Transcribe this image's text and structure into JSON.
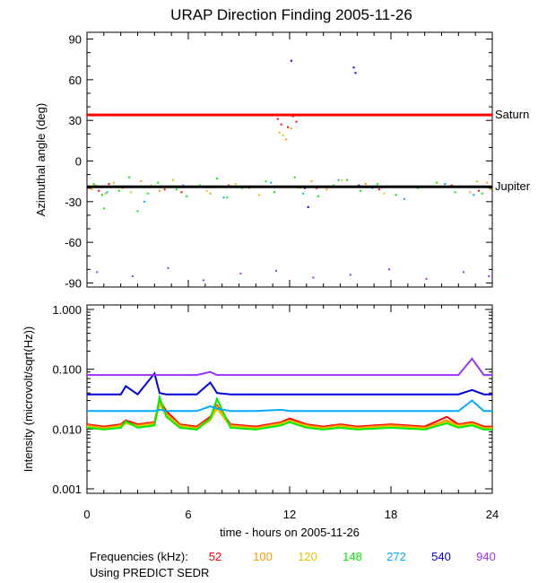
{
  "chart_data": [
    {
      "type": "scatter",
      "title": "URAP Direction Finding  2005-11-26",
      "ylabel": "Azimuthal angle (deg)",
      "xlim": [
        0,
        24
      ],
      "ylim": [
        -93,
        95
      ],
      "yticks": [
        90,
        60,
        30,
        0,
        -30,
        -60,
        -90
      ],
      "yticklabels": [
        "90",
        "60",
        "30",
        "0",
        "-30",
        "-60",
        "-90"
      ],
      "reference_lines": [
        {
          "name": "Saturn",
          "y": 34,
          "color": "#ff0000"
        },
        {
          "name": "Jupiter",
          "y": -19,
          "color": "#000000"
        }
      ],
      "series": [
        {
          "name": "52",
          "color": "#ff0000",
          "x": [
            0.2,
            0.7,
            1.3,
            2.3,
            4.6,
            5.6,
            8.4,
            11.3,
            11.5,
            11.7,
            11.9,
            12.2,
            12.4,
            13.6,
            17.3,
            21.6,
            23.2
          ],
          "y": [
            -20,
            -22,
            -17,
            -19,
            -21,
            -23,
            -18,
            31,
            27,
            34,
            25,
            33,
            29,
            -20,
            -21,
            -18,
            -22
          ]
        },
        {
          "name": "100",
          "color": "#ff9900",
          "x": [
            0.5,
            1.1,
            2.1,
            3.2,
            4.3,
            6.1,
            7.3,
            9.6,
            11.4,
            11.8,
            12.1,
            13.3,
            14.2,
            16.5,
            19.1,
            22.7,
            23.7
          ],
          "y": [
            -18,
            -24,
            -20,
            -15,
            -22,
            -19,
            -24,
            -20,
            21,
            16,
            24,
            -15,
            -21,
            -17,
            -19,
            -23,
            -16
          ]
        },
        {
          "name": "120",
          "color": "#e6c200",
          "x": [
            0.3,
            1.6,
            2.6,
            3.8,
            5.1,
            7.1,
            8.8,
            10.2,
            11.6,
            12.6,
            15.1,
            17.6,
            20.2,
            23.1,
            23.9
          ],
          "y": [
            -21,
            -16,
            -23,
            -18,
            -14,
            -22,
            -17,
            -25,
            19,
            -20,
            -14,
            -24,
            -19,
            -15,
            -21
          ]
        },
        {
          "name": "148",
          "color": "#00ee00",
          "x": [
            0.4,
            0.9,
            1.4,
            1.9,
            2.5,
            3.6,
            4.2,
            5.3,
            5.9,
            6.7,
            7.7,
            8.3,
            9.2,
            10.6,
            11.1,
            12.3,
            13.7,
            14.6,
            15.4,
            16.2,
            17.2,
            18.3,
            19.6,
            20.7,
            21.8,
            22.4,
            23.4,
            1.0,
            3.0
          ],
          "y": [
            -17,
            -25,
            -19,
            -22,
            -12,
            -24,
            -16,
            -21,
            -26,
            -18,
            -13,
            -27,
            -20,
            -15,
            -23,
            -12,
            -26,
            -18,
            -14,
            -22,
            -17,
            -25,
            -20,
            -16,
            -23,
            -19,
            -24,
            -35,
            -37
          ]
        },
        {
          "name": "272",
          "color": "#00aaff",
          "x": [
            1.2,
            3.4,
            5.7,
            8.1,
            10.9,
            12.8,
            14.9,
            16.9,
            18.8,
            21.2,
            22.9
          ],
          "y": [
            -23,
            -30,
            -18,
            -27,
            -16,
            -24,
            -14,
            -20,
            -28,
            -17,
            -25
          ]
        },
        {
          "name": "540",
          "color": "#0000dd",
          "x": [
            12.1,
            12.9,
            15.8,
            15.9,
            16.1,
            13.1
          ],
          "y": [
            74,
            -20,
            69,
            65,
            -18,
            -34
          ]
        },
        {
          "name": "940",
          "color": "#9933ff",
          "x": [
            0.6,
            2.7,
            4.8,
            6.9,
            9.1,
            11.2,
            13.4,
            15.6,
            17.9,
            20.1,
            22.3,
            23.8
          ],
          "y": [
            -82,
            -85,
            -79,
            -88,
            -83,
            -81,
            -86,
            -84,
            -80,
            -87,
            -82,
            -85
          ]
        }
      ]
    },
    {
      "type": "line",
      "ylabel": "Intensity (microvolt/sqrt(Hz))",
      "xlabel": "time - hours on 2005-11-26",
      "xlim": [
        0,
        24
      ],
      "xticks": [
        0,
        6,
        12,
        18,
        24
      ],
      "xticklabels": [
        "0",
        "6",
        "12",
        "18",
        "24"
      ],
      "ylim": [
        0.001,
        1.0
      ],
      "yscale": "log",
      "yticks": [
        1.0,
        0.1,
        0.01,
        0.001
      ],
      "yticklabels": [
        "1.000",
        "0.100",
        "0.010",
        "0.001"
      ],
      "x": [
        0,
        1,
        2,
        2.3,
        3,
        4,
        4.3,
        4.7,
        5.5,
        6.5,
        7.3,
        7.7,
        8.5,
        10,
        11.5,
        12,
        13,
        14,
        15,
        16,
        18,
        20,
        21.3,
        22,
        22.8,
        23.5,
        24
      ],
      "series": [
        {
          "name": "52",
          "color": "#ff0000",
          "values": [
            0.012,
            0.011,
            0.012,
            0.014,
            0.012,
            0.013,
            0.03,
            0.02,
            0.012,
            0.011,
            0.016,
            0.025,
            0.012,
            0.011,
            0.013,
            0.015,
            0.012,
            0.011,
            0.012,
            0.011,
            0.012,
            0.011,
            0.016,
            0.012,
            0.013,
            0.011,
            0.011
          ]
        },
        {
          "name": "100",
          "color": "#ff9900",
          "values": [
            0.0115,
            0.0105,
            0.0115,
            0.013,
            0.0115,
            0.0125,
            0.028,
            0.018,
            0.0115,
            0.0105,
            0.015,
            0.024,
            0.0115,
            0.0105,
            0.0125,
            0.014,
            0.0115,
            0.0105,
            0.0115,
            0.0105,
            0.0115,
            0.0105,
            0.014,
            0.0115,
            0.0125,
            0.0105,
            0.0105
          ]
        },
        {
          "name": "120",
          "color": "#e6c200",
          "values": [
            0.011,
            0.01,
            0.011,
            0.0125,
            0.011,
            0.012,
            0.026,
            0.017,
            0.011,
            0.01,
            0.014,
            0.022,
            0.011,
            0.01,
            0.012,
            0.0135,
            0.011,
            0.01,
            0.011,
            0.01,
            0.011,
            0.01,
            0.013,
            0.011,
            0.012,
            0.01,
            0.01
          ]
        },
        {
          "name": "148",
          "color": "#00ee00",
          "values": [
            0.0105,
            0.0098,
            0.0105,
            0.0135,
            0.0105,
            0.0115,
            0.034,
            0.016,
            0.0105,
            0.0098,
            0.015,
            0.032,
            0.0105,
            0.0098,
            0.0115,
            0.013,
            0.0105,
            0.0098,
            0.0105,
            0.0098,
            0.0105,
            0.0098,
            0.0125,
            0.0105,
            0.0115,
            0.0098,
            0.0098
          ]
        },
        {
          "name": "272",
          "color": "#00aaff",
          "values": [
            0.02,
            0.02,
            0.02,
            0.02,
            0.02,
            0.02,
            0.021,
            0.02,
            0.02,
            0.02,
            0.024,
            0.022,
            0.02,
            0.02,
            0.021,
            0.02,
            0.02,
            0.02,
            0.02,
            0.02,
            0.02,
            0.02,
            0.02,
            0.02,
            0.03,
            0.02,
            0.02
          ]
        },
        {
          "name": "540",
          "color": "#0000dd",
          "values": [
            0.038,
            0.038,
            0.038,
            0.052,
            0.038,
            0.085,
            0.04,
            0.038,
            0.038,
            0.038,
            0.06,
            0.04,
            0.038,
            0.038,
            0.038,
            0.038,
            0.038,
            0.038,
            0.038,
            0.038,
            0.038,
            0.038,
            0.038,
            0.038,
            0.045,
            0.038,
            0.038
          ]
        },
        {
          "name": "940",
          "color": "#9933ff",
          "values": [
            0.08,
            0.08,
            0.08,
            0.08,
            0.08,
            0.08,
            0.08,
            0.08,
            0.08,
            0.08,
            0.09,
            0.08,
            0.08,
            0.08,
            0.08,
            0.08,
            0.08,
            0.08,
            0.08,
            0.08,
            0.08,
            0.08,
            0.08,
            0.08,
            0.15,
            0.08,
            0.08
          ]
        }
      ]
    }
  ],
  "legend": {
    "title": "Frequencies (kHz):",
    "items": [
      {
        "label": "52",
        "color": "#ff0000"
      },
      {
        "label": "100",
        "color": "#ff9900"
      },
      {
        "label": "120",
        "color": "#e6c200"
      },
      {
        "label": "148",
        "color": "#00ee00"
      },
      {
        "label": "272",
        "color": "#00aaff"
      },
      {
        "label": "540",
        "color": "#0000dd"
      },
      {
        "label": "940",
        "color": "#9933ff"
      }
    ]
  },
  "footer_note": "Using PREDICT SEDR"
}
